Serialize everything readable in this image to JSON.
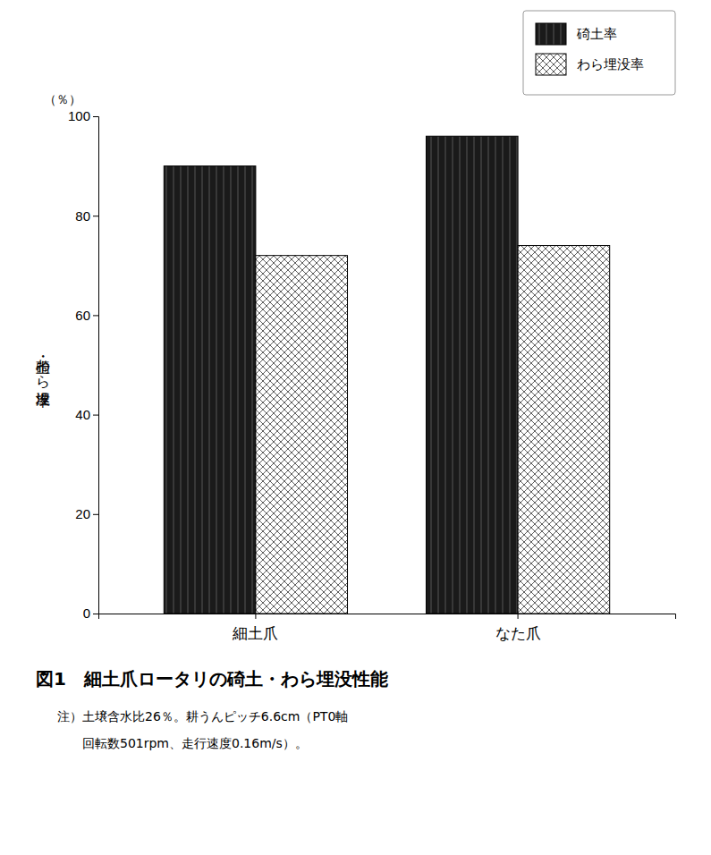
{
  "chart_data": {
    "type": "bar",
    "title": "図1　細土爪ロータリの碕土・わら埋没性能",
    "y_label": "碕土・わら埋没率",
    "annotations": [
      "（％）",
      "注）土壌含水比26％。耕うんピッチ6.6cm（PT0軸",
      "　　回転数501rpm、走行速度0.16m/s）。"
    ],
    "categories": [
      "細土爪",
      "なた爪"
    ],
    "series": [
      {
        "name": "碕土率",
        "color": "#1a1a1a",
        "values": [
          90,
          96
        ]
      },
      {
        "name": "わら埋没率",
        "color": "#ffffff",
        "values": [
          72,
          74
        ]
      }
    ],
    "ylim": [
      0,
      100
    ],
    "yticks": [
      0,
      20,
      40,
      60,
      80,
      100
    ],
    "grid": false,
    "legend": "upper right"
  }
}
